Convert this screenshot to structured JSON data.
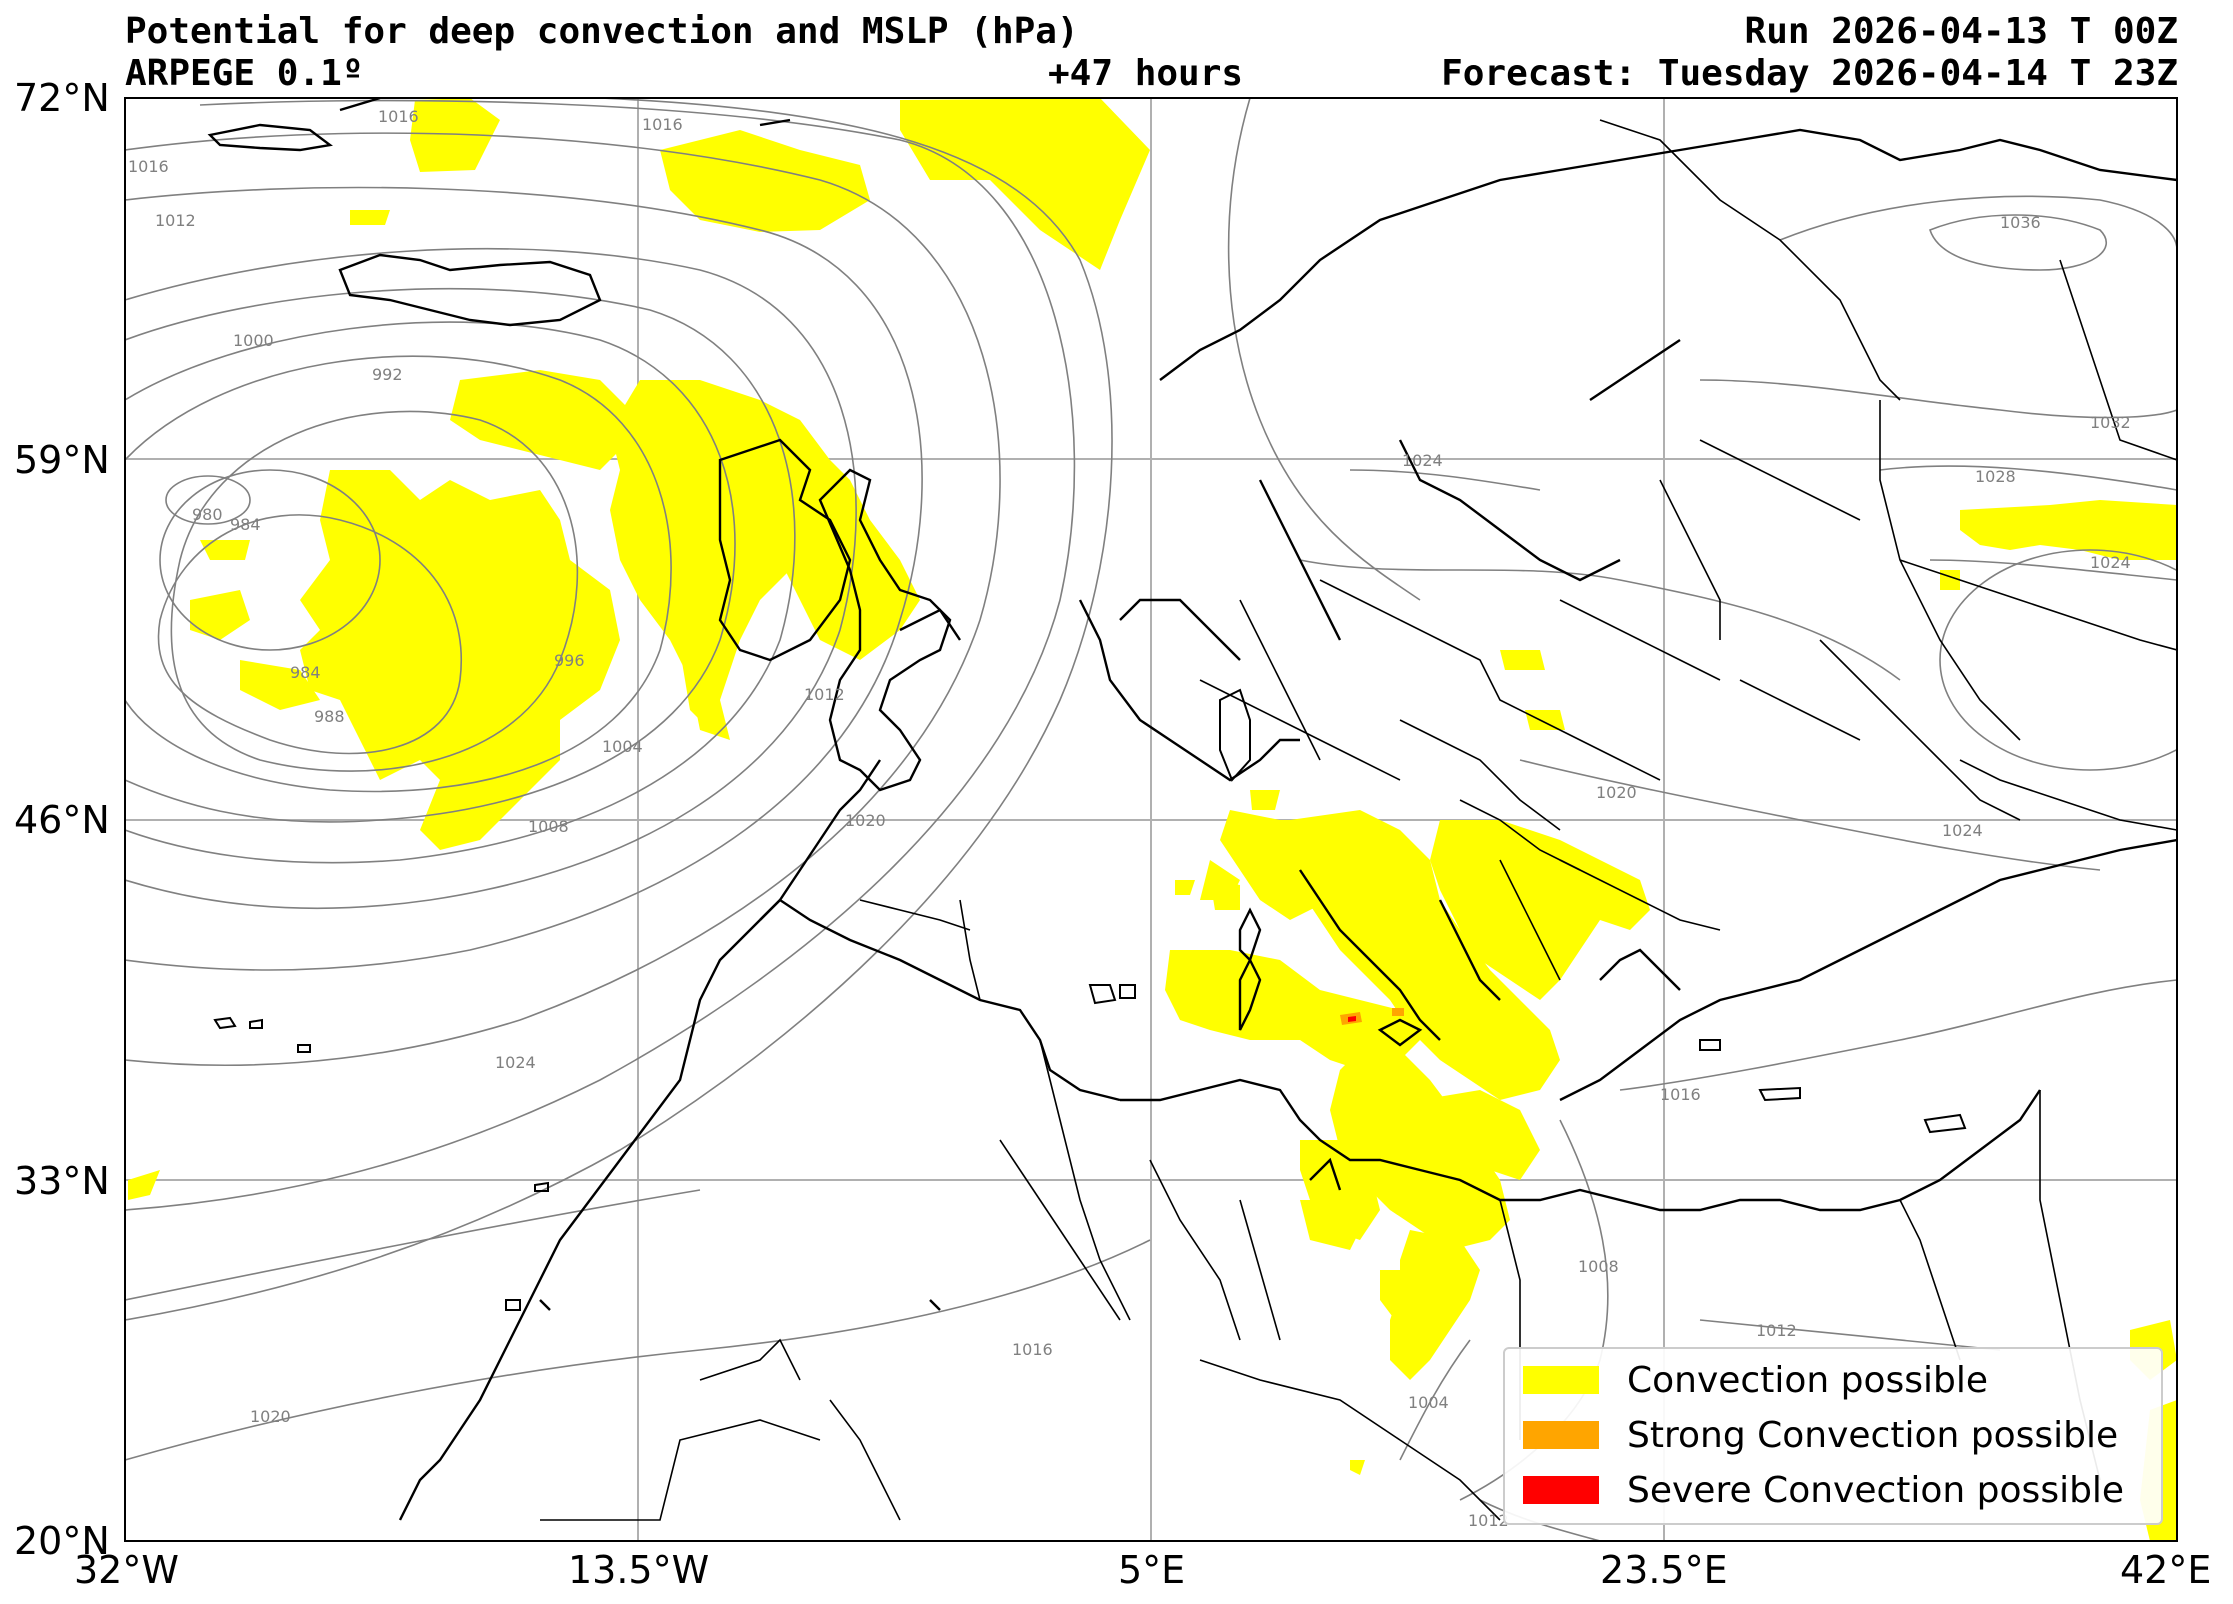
{
  "header": {
    "title": "Potential for deep convection and MSLP (hPa)",
    "model": "ARPEGE 0.1º",
    "lead_time": "+47 hours",
    "run": "Run 2026-04-13 T 00Z",
    "forecast": "Forecast: Tuesday 2026-04-14 T 23Z"
  },
  "axes": {
    "lat_ticks": [
      "72°N",
      "59°N",
      "46°N",
      "33°N",
      "20°N"
    ],
    "lon_ticks": [
      "32°W",
      "13.5°W",
      "5°E",
      "23.5°E",
      "42°E"
    ],
    "lat_range": [
      20,
      72
    ],
    "lon_range": [
      -32,
      42
    ],
    "grid": true
  },
  "isobar_labels": [
    "1016",
    "1016",
    "1016",
    "1012",
    "1000",
    "992",
    "980",
    "984",
    "984",
    "988",
    "996",
    "1004",
    "1008",
    "1012",
    "1020",
    "1024",
    "1016",
    "1020",
    "1024",
    "1036",
    "1032",
    "1028",
    "1024",
    "1020",
    "1024",
    "1016",
    "1012",
    "1008",
    "1004",
    "1012"
  ],
  "legend": {
    "items": [
      {
        "label": "Convection possible",
        "color": "#ffff00"
      },
      {
        "label": "Strong Convection possible",
        "color": "#ffa500"
      },
      {
        "label": "Severe Convection possible",
        "color": "#ff0000"
      }
    ]
  },
  "colors": {
    "convection": "#ffff00",
    "strong": "#ffa500",
    "severe": "#ff0000",
    "isobar": "#808080",
    "coast": "#000000",
    "grid": "#b0b0b0"
  }
}
